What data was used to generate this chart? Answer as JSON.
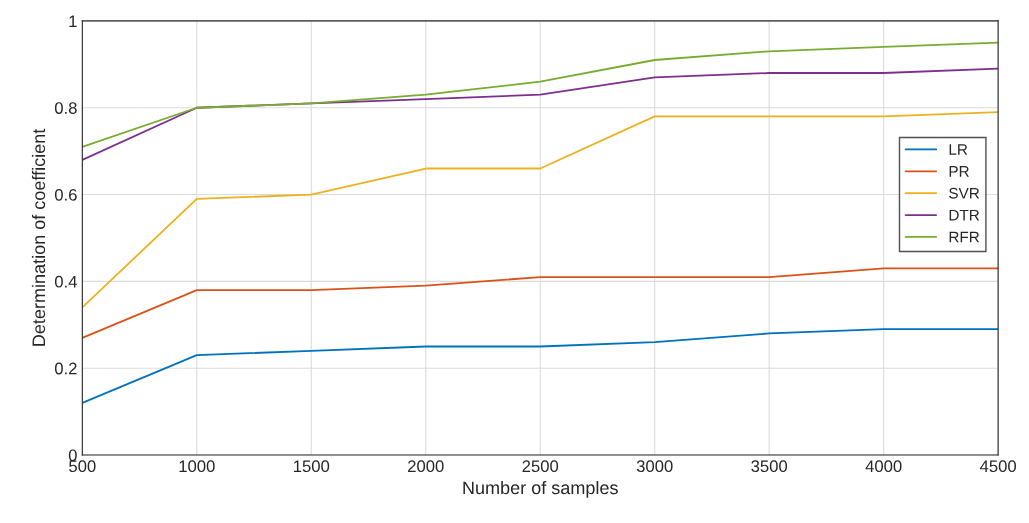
{
  "chart_data": {
    "type": "line",
    "xlabel": "Number of samples",
    "ylabel": "Determination of coefficient",
    "x": [
      500,
      1000,
      1500,
      2000,
      2500,
      3000,
      3500,
      4000,
      4500
    ],
    "series": [
      {
        "name": "LR",
        "color": "#0072bd",
        "values": [
          0.12,
          0.23,
          0.24,
          0.25,
          0.25,
          0.26,
          0.28,
          0.29,
          0.29
        ]
      },
      {
        "name": "PR",
        "color": "#d95319",
        "values": [
          0.27,
          0.38,
          0.38,
          0.39,
          0.41,
          0.41,
          0.41,
          0.43,
          0.43
        ]
      },
      {
        "name": "SVR",
        "color": "#edb120",
        "values": [
          0.34,
          0.59,
          0.6,
          0.66,
          0.66,
          0.78,
          0.78,
          0.78,
          0.79
        ]
      },
      {
        "name": "DTR",
        "color": "#7e2f8e",
        "values": [
          0.68,
          0.8,
          0.81,
          0.82,
          0.83,
          0.87,
          0.88,
          0.88,
          0.89
        ]
      },
      {
        "name": "RFR",
        "color": "#77ac30",
        "values": [
          0.71,
          0.8,
          0.81,
          0.83,
          0.86,
          0.91,
          0.93,
          0.94,
          0.95
        ]
      }
    ],
    "xlim": [
      500,
      4500
    ],
    "xticks": [
      500,
      1000,
      1500,
      2000,
      2500,
      3000,
      3500,
      4000,
      4500
    ],
    "ylim": [
      0,
      1
    ],
    "yticks": [
      0,
      0.2,
      0.4,
      0.6,
      0.8,
      1
    ],
    "grid": true,
    "legend": "right",
    "marker": "none",
    "line_style": "solid"
  }
}
